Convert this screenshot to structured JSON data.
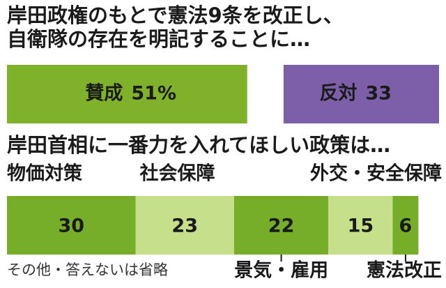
{
  "chart_data": [
    {
      "type": "bar",
      "title": [
        "岸田政権のもとで憲法9条を改正し、",
        "自衛隊の存在を明記することに…"
      ],
      "categories": [
        "賛成",
        "反対"
      ],
      "values": [
        51,
        33
      ],
      "value_labels": [
        "51%",
        "33"
      ],
      "colors": [
        "#7fb22a",
        "#7d5ea8"
      ],
      "xlim": [
        0,
        100
      ]
    },
    {
      "type": "stacked-bar",
      "title": "岸田首相に一番力を入れてほしい政策は…",
      "series": [
        {
          "name": "物価対策",
          "color": "#76ad29",
          "values": [
            30
          ]
        },
        {
          "name": "社会保障",
          "color": "#c5df8a",
          "values": [
            23
          ]
        },
        {
          "name": "景気・雇用",
          "color": "#76ad29",
          "values": [
            22
          ]
        },
        {
          "name": "外交・安全保障",
          "color": "#c5df8a",
          "values": [
            15
          ]
        },
        {
          "name": "憲法改正",
          "color": "#76ad29",
          "values": [
            6
          ]
        }
      ],
      "xlim": [
        0,
        100
      ],
      "note": "その他・答えないは省略"
    }
  ]
}
